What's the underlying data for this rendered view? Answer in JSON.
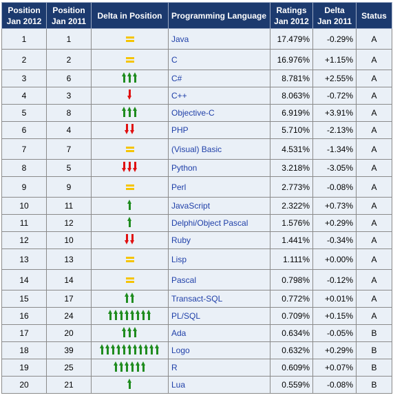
{
  "headers": {
    "pos2012": [
      "Position",
      "Jan 2012"
    ],
    "pos2011": [
      "Position",
      "Jan 2011"
    ],
    "delta_pos": "Delta in Position",
    "language": "Programming Language",
    "ratings": [
      "Ratings",
      "Jan 2012"
    ],
    "delta": [
      "Delta",
      "Jan 2011"
    ],
    "status": "Status"
  },
  "colors": {
    "header_bg": "#1c3a6e",
    "row_bg": "#eaf0f7",
    "link": "#1f3fa8",
    "up_arrow": "#1f8c1f",
    "down_arrow": "#e01010",
    "equal_sign": "#f5c400"
  },
  "icons": {
    "up": "up-arrow-icon",
    "down": "down-arrow-icon",
    "same": "equals-icon"
  },
  "rows": [
    {
      "pos2012": "1",
      "pos2011": "1",
      "trend": "same",
      "arrows": 1,
      "language": "Java",
      "rating": "17.479%",
      "delta": "-0.29%",
      "status": "A"
    },
    {
      "pos2012": "2",
      "pos2011": "2",
      "trend": "same",
      "arrows": 1,
      "language": "C",
      "rating": "16.976%",
      "delta": "+1.15%",
      "status": "A"
    },
    {
      "pos2012": "3",
      "pos2011": "6",
      "trend": "up",
      "arrows": 3,
      "language": "C#",
      "rating": "8.781%",
      "delta": "+2.55%",
      "status": "A"
    },
    {
      "pos2012": "4",
      "pos2011": "3",
      "trend": "down",
      "arrows": 1,
      "language": "C++",
      "rating": "8.063%",
      "delta": "-0.72%",
      "status": "A"
    },
    {
      "pos2012": "5",
      "pos2011": "8",
      "trend": "up",
      "arrows": 3,
      "language": "Objective-C",
      "rating": "6.919%",
      "delta": "+3.91%",
      "status": "A"
    },
    {
      "pos2012": "6",
      "pos2011": "4",
      "trend": "down",
      "arrows": 2,
      "language": "PHP",
      "rating": "5.710%",
      "delta": "-2.13%",
      "status": "A"
    },
    {
      "pos2012": "7",
      "pos2011": "7",
      "trend": "same",
      "arrows": 1,
      "language": "(Visual) Basic",
      "rating": "4.531%",
      "delta": "-1.34%",
      "status": "A"
    },
    {
      "pos2012": "8",
      "pos2011": "5",
      "trend": "down",
      "arrows": 3,
      "language": "Python",
      "rating": "3.218%",
      "delta": "-3.05%",
      "status": "A"
    },
    {
      "pos2012": "9",
      "pos2011": "9",
      "trend": "same",
      "arrows": 1,
      "language": "Perl",
      "rating": "2.773%",
      "delta": "-0.08%",
      "status": "A"
    },
    {
      "pos2012": "10",
      "pos2011": "11",
      "trend": "up",
      "arrows": 1,
      "language": "JavaScript",
      "rating": "2.322%",
      "delta": "+0.73%",
      "status": "A"
    },
    {
      "pos2012": "11",
      "pos2011": "12",
      "trend": "up",
      "arrows": 1,
      "language": "Delphi/Object Pascal",
      "rating": "1.576%",
      "delta": "+0.29%",
      "status": "A"
    },
    {
      "pos2012": "12",
      "pos2011": "10",
      "trend": "down",
      "arrows": 2,
      "language": "Ruby",
      "rating": "1.441%",
      "delta": "-0.34%",
      "status": "A"
    },
    {
      "pos2012": "13",
      "pos2011": "13",
      "trend": "same",
      "arrows": 1,
      "language": "Lisp",
      "rating": "1.111%",
      "delta": "+0.00%",
      "status": "A"
    },
    {
      "pos2012": "14",
      "pos2011": "14",
      "trend": "same",
      "arrows": 1,
      "language": "Pascal",
      "rating": "0.798%",
      "delta": "-0.12%",
      "status": "A"
    },
    {
      "pos2012": "15",
      "pos2011": "17",
      "trend": "up",
      "arrows": 2,
      "language": "Transact-SQL",
      "rating": "0.772%",
      "delta": "+0.01%",
      "status": "A"
    },
    {
      "pos2012": "16",
      "pos2011": "24",
      "trend": "up",
      "arrows": 8,
      "language": "PL/SQL",
      "rating": "0.709%",
      "delta": "+0.15%",
      "status": "A"
    },
    {
      "pos2012": "17",
      "pos2011": "20",
      "trend": "up",
      "arrows": 3,
      "language": "Ada",
      "rating": "0.634%",
      "delta": "-0.05%",
      "status": "B"
    },
    {
      "pos2012": "18",
      "pos2011": "39",
      "trend": "up",
      "arrows": 11,
      "language": "Logo",
      "rating": "0.632%",
      "delta": "+0.29%",
      "status": "B"
    },
    {
      "pos2012": "19",
      "pos2011": "25",
      "trend": "up",
      "arrows": 6,
      "language": "R",
      "rating": "0.609%",
      "delta": "+0.07%",
      "status": "B"
    },
    {
      "pos2012": "20",
      "pos2011": "21",
      "trend": "up",
      "arrows": 1,
      "language": "Lua",
      "rating": "0.559%",
      "delta": "-0.08%",
      "status": "B"
    }
  ]
}
